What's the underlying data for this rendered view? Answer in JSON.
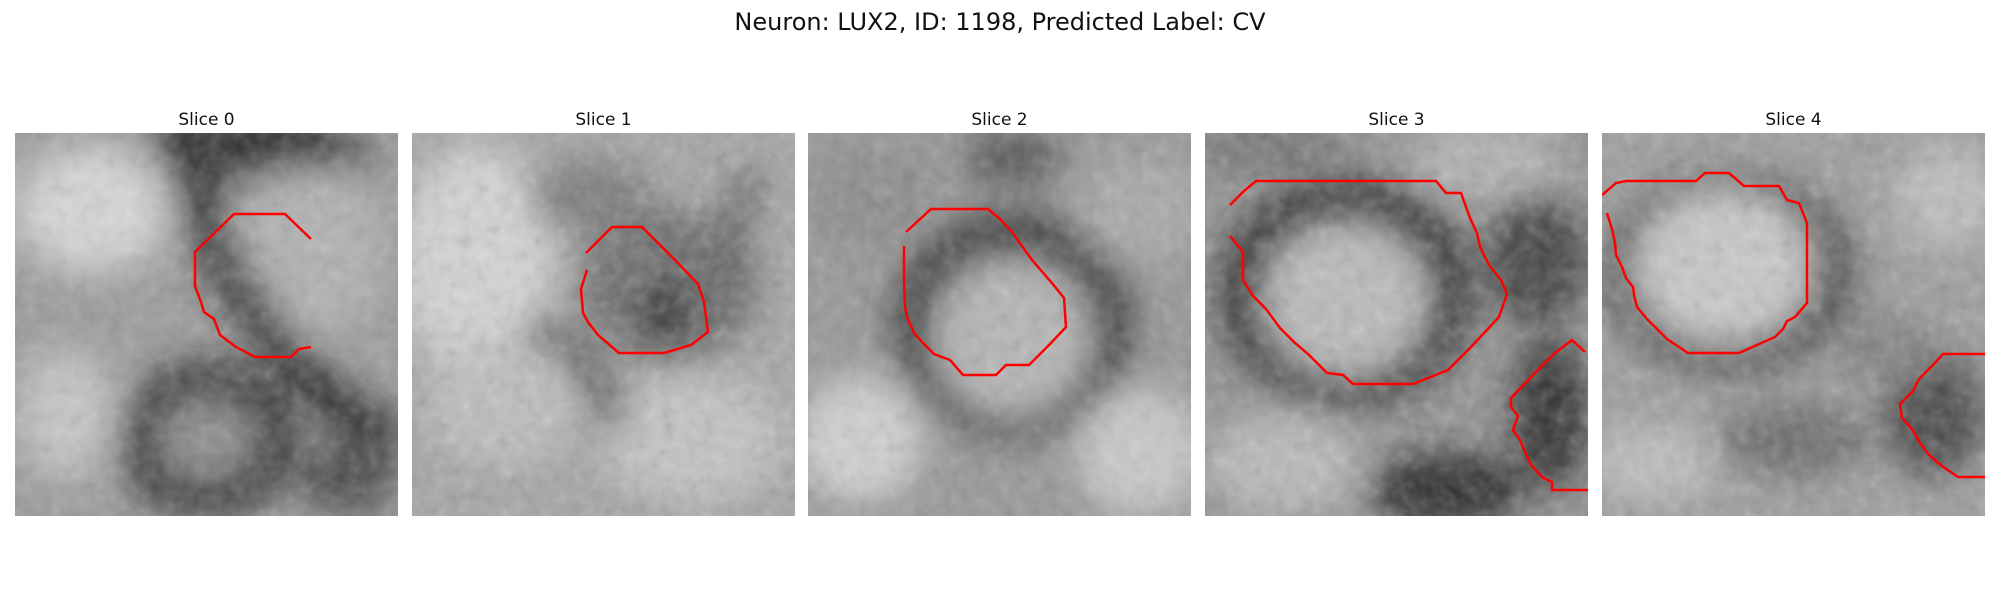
{
  "figure": {
    "suptitle": "Neuron: LUX2, ID: 1198, Predicted Label: CV",
    "contour_color": "#ff0000",
    "panels": [
      {
        "title": "Slice 0"
      },
      {
        "title": "Slice 1"
      },
      {
        "title": "Slice 2"
      },
      {
        "title": "Slice 3"
      },
      {
        "title": "Slice 4"
      }
    ]
  }
}
